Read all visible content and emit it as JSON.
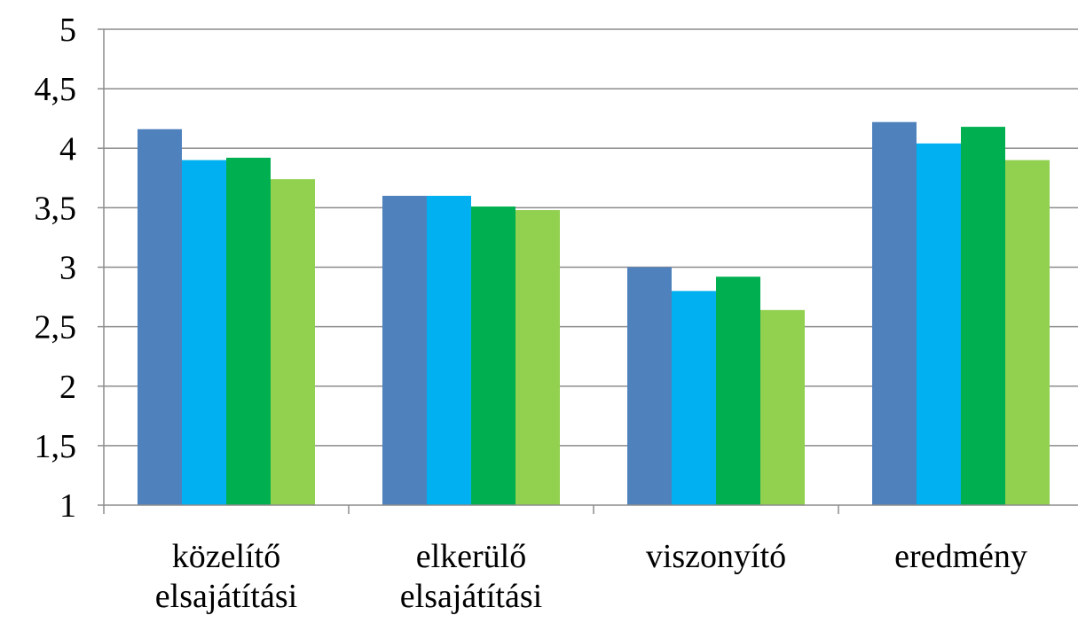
{
  "chart_data": {
    "type": "bar",
    "title": "",
    "xlabel": "",
    "ylabel": "",
    "ylim": [
      1,
      5
    ],
    "yticks": [
      1,
      1.5,
      2,
      2.5,
      3,
      3.5,
      4,
      4.5,
      5
    ],
    "ytick_labels": [
      "1",
      "1,5",
      "2",
      "2,5",
      "3",
      "3,5",
      "4",
      "4,5",
      "5"
    ],
    "grid": true,
    "legend": "none",
    "categories": [
      [
        "közelítő",
        "elsajátítási"
      ],
      [
        "elkerülő",
        "elsajátítási"
      ],
      [
        "viszonyító"
      ],
      [
        "eredmény"
      ]
    ],
    "series": [
      {
        "color": "#4F81BD",
        "values": [
          4.16,
          3.6,
          3.0,
          4.22
        ]
      },
      {
        "color": "#00B0F0",
        "values": [
          3.9,
          3.6,
          2.8,
          4.04
        ]
      },
      {
        "color": "#00B050",
        "values": [
          3.92,
          3.51,
          2.92,
          4.18
        ]
      },
      {
        "color": "#92D050",
        "values": [
          3.74,
          3.48,
          2.64,
          3.9
        ]
      }
    ]
  }
}
